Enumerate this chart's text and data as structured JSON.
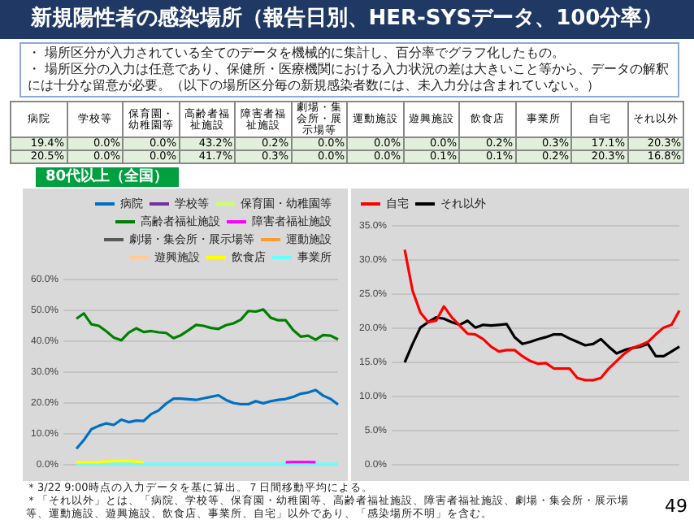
{
  "chart_data": [
    {
      "type": "other",
      "title": "新規陽性者の感染場所（報告日別、HER-SYSデータ、100分率）",
      "annotations": [
        "・ 場所区分が入力されている全てのデータを機械的に集計し、百分率でグラフ化したもの。",
        "・ 場所区分の入力は任意であり、保健所・医療機関における入力状況の差は大きいこと等から、データの解釈には十分な留意が必要。（以下の場所区分毎の新規感染者数には、未入力分は含まれていない。）"
      ]
    },
    {
      "type": "other",
      "categories": [
        "病院",
        "学校等",
        "保育園・幼稚園等",
        "高齢者福祉施設",
        "障害者福祉施設",
        "劇場・集会所・展示場等",
        "運動施設",
        "遊興施設",
        "飲食店",
        "事業所",
        "自宅",
        "それ以外"
      ],
      "cell_labels": [
        [
          "19.4%",
          "0.0%",
          "0.0%",
          "43.2%",
          "0.2%",
          "0.0%",
          "0.0%",
          "0.0%",
          "0.2%",
          "0.3%",
          "17.1%",
          "20.3%"
        ],
        [
          "20.5%",
          "0.0%",
          "0.0%",
          "41.7%",
          "0.3%",
          "0.0%",
          "0.0%",
          "0.1%",
          "0.1%",
          "0.2%",
          "20.3%",
          "16.8%"
        ]
      ]
    },
    {
      "type": "line",
      "subtitle": "80代以上（全国）",
      "categories": [
        null,
        null,
        null,
        null,
        null,
        null,
        null,
        null,
        null,
        null,
        null,
        null,
        null,
        null,
        null,
        null,
        null,
        null,
        null,
        null,
        null,
        null,
        null,
        null,
        null,
        null,
        null,
        null,
        null,
        null,
        null,
        null,
        null,
        null,
        null,
        null
      ],
      "series": [
        {
          "name": "病院",
          "color": "#0070c0",
          "values": [
            5.2,
            8.0,
            11.5,
            12.6,
            13.4,
            12.9,
            14.6,
            13.8,
            14.3,
            14.2,
            16.4,
            17.6,
            19.8,
            21.4,
            21.4,
            21.2,
            21.0,
            21.5,
            22.0,
            22.5,
            21.0,
            20.0,
            19.6,
            19.6,
            20.6,
            19.9,
            20.6,
            21.0,
            21.3,
            22.0,
            23.0,
            23.4,
            24.2,
            22.4,
            21.3,
            19.5
          ]
        },
        {
          "name": "学校等",
          "color": "#7030a0",
          "values": [
            null,
            null,
            null,
            null,
            null,
            null,
            null,
            null,
            null,
            null,
            null,
            null,
            null,
            null,
            null,
            null,
            null,
            null,
            null,
            null,
            null,
            null,
            null,
            null,
            null,
            null,
            null,
            null,
            null,
            null,
            null,
            null,
            null,
            null,
            null,
            null
          ]
        },
        {
          "name": "保育園・幼稚園等",
          "color": "#ccff66",
          "values": [
            null,
            null,
            null,
            null,
            null,
            null,
            null,
            null,
            null,
            null,
            null,
            null,
            null,
            null,
            null,
            null,
            null,
            null,
            null,
            null,
            null,
            null,
            null,
            null,
            null,
            null,
            null,
            null,
            null,
            null,
            null,
            null,
            null,
            null,
            null,
            null
          ]
        },
        {
          "name": "高齢者福祉施設",
          "color": "#008000",
          "values": [
            47.3,
            49.0,
            45.5,
            45.0,
            43.2,
            41.2,
            40.3,
            42.8,
            44.2,
            43.0,
            43.3,
            42.9,
            42.7,
            41.0,
            42.0,
            43.6,
            45.3,
            45.0,
            44.3,
            44.0,
            45.2,
            45.8,
            47.0,
            49.8,
            49.6,
            50.3,
            47.6,
            46.8,
            46.8,
            43.6,
            41.5,
            41.8,
            40.5,
            42.0,
            41.8,
            40.6
          ]
        },
        {
          "name": "障害者福祉施設",
          "color": "#ff00ff",
          "values": [
            null,
            null,
            null,
            null,
            null,
            null,
            null,
            null,
            null,
            null,
            null,
            null,
            null,
            null,
            null,
            null,
            null,
            null,
            null,
            null,
            null,
            null,
            null,
            null,
            null,
            null,
            null,
            null,
            0.8,
            0.9,
            0.9,
            0.9,
            0.8,
            null,
            null,
            null
          ]
        },
        {
          "name": "劇場・集会所・展示場等",
          "color": "#595959",
          "values": [
            null,
            null,
            null,
            null,
            null,
            null,
            null,
            null,
            null,
            null,
            null,
            null,
            null,
            null,
            null,
            null,
            null,
            null,
            null,
            null,
            null,
            null,
            null,
            null,
            null,
            null,
            null,
            null,
            null,
            null,
            null,
            null,
            null,
            null,
            null,
            null
          ]
        },
        {
          "name": "運動施設",
          "color": "#ff9933",
          "values": [
            null,
            null,
            null,
            null,
            null,
            null,
            null,
            null,
            null,
            null,
            null,
            null,
            null,
            null,
            null,
            null,
            null,
            null,
            null,
            null,
            null,
            null,
            null,
            null,
            null,
            null,
            null,
            null,
            null,
            null,
            null,
            null,
            null,
            null,
            null,
            null
          ]
        },
        {
          "name": "遊興施設",
          "color": "#ffcc99",
          "values": [
            null,
            null,
            null,
            null,
            null,
            null,
            null,
            null,
            null,
            null,
            null,
            null,
            null,
            null,
            null,
            null,
            null,
            null,
            null,
            null,
            null,
            null,
            null,
            null,
            null,
            null,
            null,
            null,
            null,
            null,
            null,
            null,
            null,
            null,
            null,
            null
          ]
        },
        {
          "name": "飲食店",
          "color": "#ffff00",
          "values": [
            0.8,
            0.8,
            0.8,
            0.8,
            1.0,
            1.2,
            1.2,
            1.2,
            1.0,
            0.8,
            null,
            null,
            null,
            null,
            null,
            null,
            null,
            null,
            null,
            null,
            null,
            null,
            null,
            null,
            null,
            null,
            null,
            null,
            null,
            null,
            null,
            null,
            null,
            null,
            null,
            null
          ]
        },
        {
          "name": "事業所",
          "color": "#66ffff",
          "values": [
            0.3,
            0.3,
            0.3,
            0.3,
            0.3,
            0.3,
            0.3,
            0.3,
            0.3,
            0.3,
            0.3,
            0.3,
            0.3,
            0.3,
            0.3,
            0.3,
            0.3,
            0.3,
            0.3,
            0.3,
            0.3,
            0.3,
            0.3,
            0.3,
            0.3,
            0.3,
            0.3,
            0.3,
            0.3,
            0.3,
            0.3,
            0.3,
            0.3,
            0.3,
            0.3,
            0.3
          ]
        }
      ],
      "ylim": [
        0,
        60
      ],
      "yticks": [
        {
          "value": 0,
          "label": "0.0%"
        },
        {
          "value": 10,
          "label": "10.0%"
        },
        {
          "value": 20,
          "label": "20.0%"
        },
        {
          "value": 30,
          "label": "30.0%"
        },
        {
          "value": 40,
          "label": "40.0%"
        },
        {
          "value": 50,
          "label": "50.0%"
        },
        {
          "value": 60,
          "label": "60.0%"
        }
      ],
      "grid": "y",
      "legend": "top right",
      "tick_labels": "y"
    },
    {
      "type": "line",
      "categories": [
        null,
        null,
        null,
        null,
        null,
        null,
        null,
        null,
        null,
        null,
        null,
        null,
        null,
        null,
        null,
        null,
        null,
        null,
        null,
        null,
        null,
        null,
        null,
        null,
        null,
        null,
        null,
        null,
        null,
        null,
        null,
        null,
        null,
        null,
        null,
        null
      ],
      "series": [
        {
          "name": "自宅",
          "color": "#ff0000",
          "values": [
            31.5,
            25.5,
            22.3,
            20.9,
            21.1,
            23.2,
            21.6,
            20.4,
            19.2,
            19.1,
            18.4,
            17.3,
            16.6,
            16.8,
            16.8,
            15.9,
            15.2,
            14.8,
            14.9,
            14.1,
            14.1,
            14.1,
            12.7,
            12.4,
            12.4,
            12.7,
            14.1,
            15.2,
            16.3,
            17.1,
            17.5,
            18.0,
            19.1,
            20.1,
            20.5,
            22.6
          ]
        },
        {
          "name": "それ以外",
          "color": "#000000",
          "values": [
            15.0,
            17.7,
            20.1,
            20.9,
            21.6,
            21.4,
            20.9,
            20.5,
            21.1,
            20.1,
            20.5,
            20.4,
            20.5,
            20.6,
            18.7,
            17.7,
            18.0,
            18.4,
            18.7,
            19.1,
            19.1,
            18.5,
            18.0,
            17.5,
            17.7,
            18.4,
            17.3,
            16.3,
            16.8,
            17.1,
            17.3,
            17.7,
            15.9,
            15.9,
            16.6,
            17.3
          ]
        }
      ],
      "ylim": [
        0,
        35
      ],
      "yticks": [
        {
          "value": 0,
          "label": "0.0%"
        },
        {
          "value": 5,
          "label": "5.0%"
        },
        {
          "value": 10,
          "label": "10.0%"
        },
        {
          "value": 15,
          "label": "15.0%"
        },
        {
          "value": 20,
          "label": "20.0%"
        },
        {
          "value": 25,
          "label": "25.0%"
        },
        {
          "value": 30,
          "label": "30.0%"
        },
        {
          "value": 35,
          "label": "35.0%"
        }
      ],
      "grid": "y",
      "legend": "top left",
      "tick_labels": "y"
    },
    {
      "type": "other",
      "annotations": [
        "＊3/22 9:00時点の入力データを基に算出。７日間移動平均による。",
        "＊「それ以外」とは、「病院、学校等、保育園・幼稚園等、高齢者福祉施設、障害者福祉施設、劇場・集会所・展示場等、運動施設、遊興施設、飲食店、事業所、自宅」以外であり、「感染場所不明」を含む。",
        "49"
      ]
    }
  ]
}
